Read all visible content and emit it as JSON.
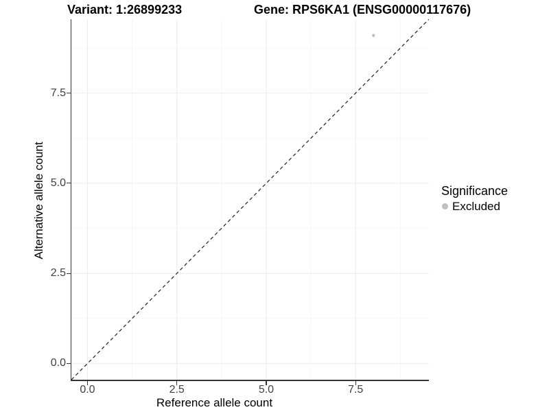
{
  "chart_data": {
    "type": "scatter",
    "title_left": "Variant: 1:26899233",
    "title_right": "Gene: RPS6KA1 (ENSG00000117676)",
    "xlabel": "Reference allele count",
    "ylabel": "Alternative allele count",
    "xlim": [
      -0.45,
      9.55
    ],
    "ylim": [
      -0.45,
      9.55
    ],
    "x_ticks": [
      0.0,
      2.5,
      5.0,
      7.5
    ],
    "y_ticks": [
      0.0,
      2.5,
      5.0,
      7.5
    ],
    "x_tick_labels": [
      "0.0",
      "2.5",
      "5.0",
      "7.5"
    ],
    "y_tick_labels": [
      "0.0",
      "2.5",
      "5.0",
      "7.5"
    ],
    "minor_gridlines": [
      1.25,
      3.75,
      6.25,
      8.75
    ],
    "grid": "major+minor",
    "legend_position": "right",
    "series": [
      {
        "name": "Excluded",
        "marker": "circle",
        "color": "#bfbfbf",
        "points": [
          {
            "x": 8.0,
            "y": 9.1
          }
        ]
      }
    ],
    "reference_line": {
      "type": "identity y=x",
      "style": "dashed",
      "color": "#1f1f1f"
    },
    "legend": {
      "title": "Significance",
      "entries": [
        {
          "label": "Excluded",
          "color": "#bfbfbf",
          "marker": "circle"
        }
      ]
    }
  },
  "colors": {
    "background": "#ffffff",
    "axis_line": "#333333",
    "tick_label": "#404040",
    "grid_major": "#ebebeb",
    "grid_minor": "#f4f4f4",
    "point": "#bfbfbf",
    "dashed_line": "#1f1f1f"
  }
}
